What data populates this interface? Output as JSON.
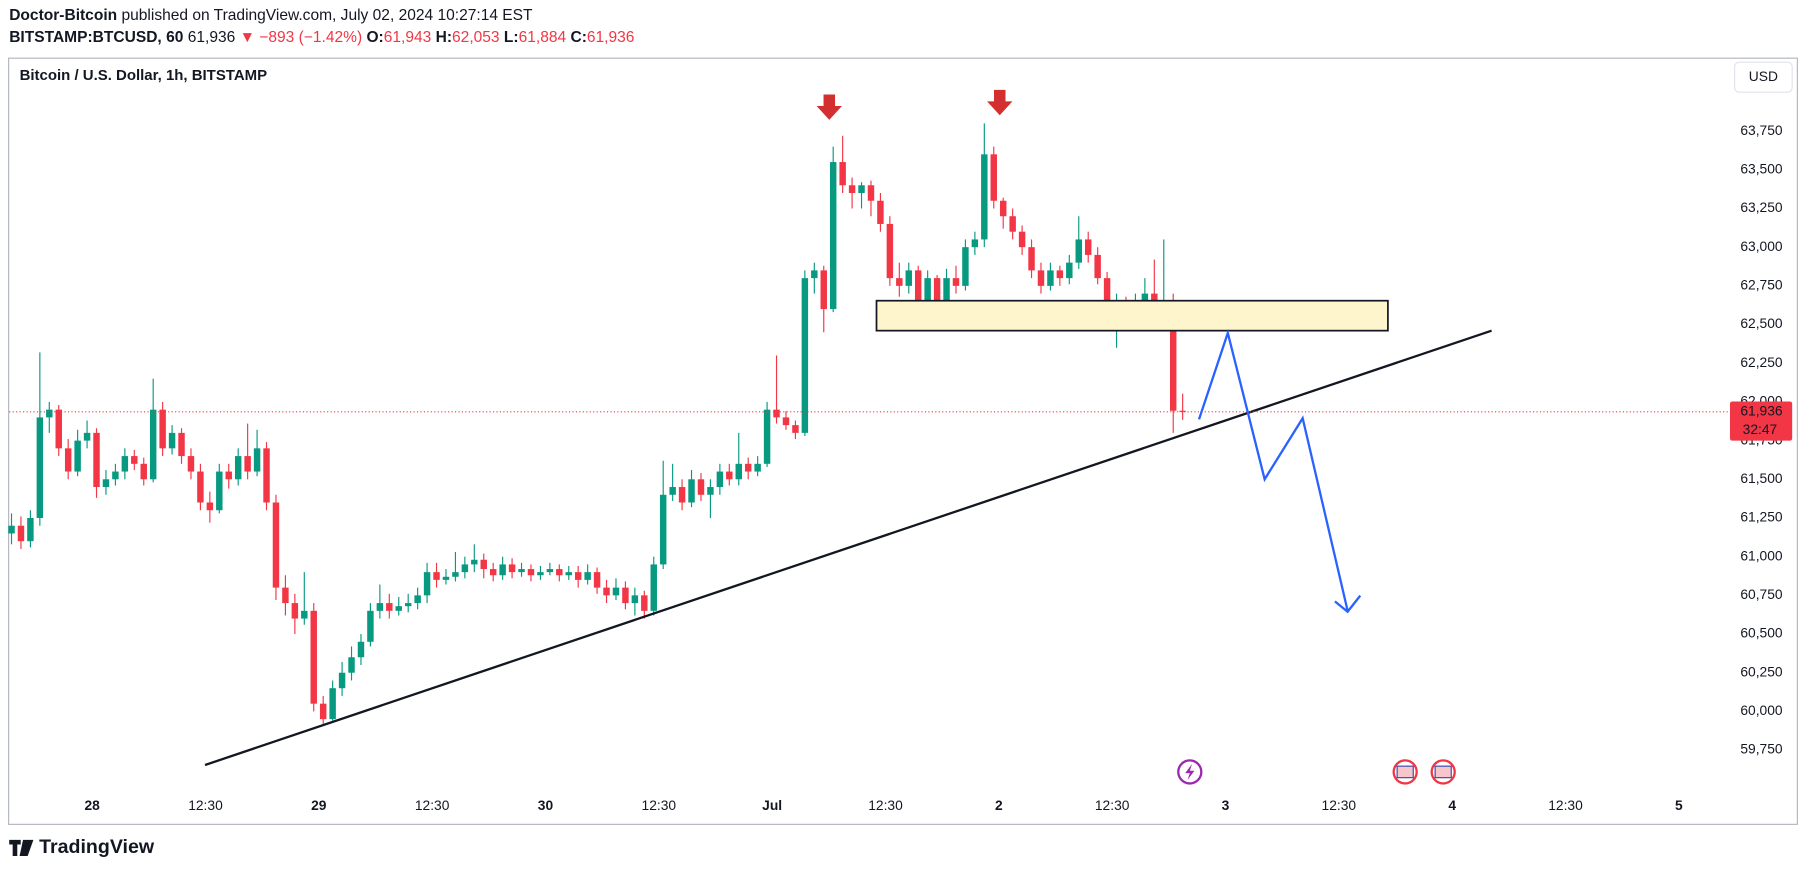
{
  "header": {
    "author": "Doctor-Bitcoin",
    "published": "published on TradingView.com, July 02, 2024 10:27:14 EST",
    "symbol": "BITSTAMP:BTCUSD, 60",
    "price": "61,936",
    "change": "▼ −893 (−1.42%)",
    "ohlc": [
      {
        "key": "O:",
        "value": "61,943"
      },
      {
        "key": "H:",
        "value": "62,053"
      },
      {
        "key": "L:",
        "value": "61,884"
      },
      {
        "key": "C:",
        "value": "61,936"
      }
    ]
  },
  "chart_data": {
    "type": "candlestick",
    "title": "Bitcoin / U.S. Dollar, 1h, BITSTAMP",
    "currency": "USD",
    "up_color": "#089981",
    "down_color": "#f23645",
    "grid": false,
    "ylim": [
      59475,
      64225
    ],
    "yticks": [
      {
        "value": 59750,
        "label": "59,750"
      },
      {
        "value": 60000,
        "label": "60,000"
      },
      {
        "value": 60250,
        "label": "60,250"
      },
      {
        "value": 60500,
        "label": "60,500"
      },
      {
        "value": 60750,
        "label": "60,750"
      },
      {
        "value": 61000,
        "label": "61,000"
      },
      {
        "value": 61250,
        "label": "61,250"
      },
      {
        "value": 61500,
        "label": "61,500"
      },
      {
        "value": 61750,
        "label": "61,750"
      },
      {
        "value": 62000,
        "label": "62,000"
      },
      {
        "value": 62250,
        "label": "62,250"
      },
      {
        "value": 62500,
        "label": "62,500"
      },
      {
        "value": 62750,
        "label": "62,750"
      },
      {
        "value": 63000,
        "label": "63,000"
      },
      {
        "value": 63250,
        "label": "63,250"
      },
      {
        "value": 63500,
        "label": "63,500"
      },
      {
        "value": 63750,
        "label": "63,750"
      }
    ],
    "xticks": [
      "28",
      "12:30",
      "29",
      "12:30",
      "30",
      "12:30",
      "Jul",
      "12:30",
      "2",
      "12:30",
      "3",
      "12:30",
      "4",
      "12:30",
      "5"
    ],
    "last_price": {
      "value": 61936,
      "label": "61,936"
    },
    "countdown": "32:47",
    "ohlc": [
      [
        61150,
        61280,
        61080,
        61200
      ],
      [
        61200,
        61260,
        61050,
        61100
      ],
      [
        61100,
        61300,
        61060,
        61250
      ],
      [
        61250,
        62320,
        61200,
        61900
      ],
      [
        61900,
        62000,
        61800,
        61950
      ],
      [
        61950,
        61980,
        61650,
        61700
      ],
      [
        61700,
        61760,
        61500,
        61550
      ],
      [
        61550,
        61820,
        61520,
        61750
      ],
      [
        61750,
        61880,
        61700,
        61800
      ],
      [
        61800,
        61830,
        61380,
        61450
      ],
      [
        61450,
        61560,
        61400,
        61500
      ],
      [
        61500,
        61600,
        61460,
        61550
      ],
      [
        61550,
        61700,
        61500,
        61650
      ],
      [
        61650,
        61690,
        61560,
        61600
      ],
      [
        61600,
        61640,
        61460,
        61500
      ],
      [
        61500,
        62150,
        61480,
        61950
      ],
      [
        61950,
        62000,
        61650,
        61700
      ],
      [
        61700,
        61850,
        61660,
        61800
      ],
      [
        61800,
        61830,
        61600,
        61650
      ],
      [
        61650,
        61700,
        61500,
        61550
      ],
      [
        61550,
        61600,
        61300,
        61350
      ],
      [
        61350,
        61420,
        61220,
        61300
      ],
      [
        61300,
        61600,
        61280,
        61550
      ],
      [
        61550,
        61600,
        61440,
        61500
      ],
      [
        61500,
        61700,
        61460,
        61650
      ],
      [
        61650,
        61860,
        61500,
        61550
      ],
      [
        61550,
        61820,
        61520,
        61700
      ],
      [
        61700,
        61740,
        61300,
        61350
      ],
      [
        61350,
        61400,
        60720,
        60800
      ],
      [
        60800,
        60880,
        60620,
        60700
      ],
      [
        60700,
        60760,
        60500,
        60600
      ],
      [
        60600,
        60900,
        60560,
        60650
      ],
      [
        60650,
        60700,
        60000,
        60050
      ],
      [
        60050,
        60100,
        59920,
        59950
      ],
      [
        59950,
        60200,
        59940,
        60150
      ],
      [
        60150,
        60320,
        60100,
        60250
      ],
      [
        60250,
        60420,
        60200,
        60350
      ],
      [
        60350,
        60500,
        60300,
        60450
      ],
      [
        60450,
        60700,
        60420,
        60650
      ],
      [
        60650,
        60820,
        60600,
        60700
      ],
      [
        60700,
        60760,
        60600,
        60650
      ],
      [
        60650,
        60740,
        60620,
        60680
      ],
      [
        60680,
        60760,
        60640,
        60700
      ],
      [
        60700,
        60800,
        60660,
        60750
      ],
      [
        60750,
        60960,
        60700,
        60900
      ],
      [
        60900,
        60960,
        60800,
        60850
      ],
      [
        60850,
        60920,
        60820,
        60870
      ],
      [
        60870,
        61030,
        60840,
        60900
      ],
      [
        60900,
        61000,
        60860,
        60950
      ],
      [
        60950,
        61080,
        60900,
        60980
      ],
      [
        60980,
        61020,
        60860,
        60920
      ],
      [
        60920,
        60960,
        60840,
        60880
      ],
      [
        60880,
        61000,
        60850,
        60950
      ],
      [
        60950,
        60990,
        60860,
        60900
      ],
      [
        60900,
        60960,
        60870,
        60920
      ],
      [
        60920,
        60950,
        60840,
        60880
      ],
      [
        60880,
        60940,
        60850,
        60900
      ],
      [
        60900,
        60960,
        60880,
        60920
      ],
      [
        60920,
        60950,
        60840,
        60880
      ],
      [
        60880,
        60940,
        60850,
        60900
      ],
      [
        60900,
        60940,
        60800,
        60850
      ],
      [
        60850,
        60950,
        60820,
        60900
      ],
      [
        60900,
        60930,
        60760,
        60800
      ],
      [
        60800,
        60850,
        60700,
        60750
      ],
      [
        60750,
        60860,
        60720,
        60800
      ],
      [
        60800,
        60840,
        60660,
        60700
      ],
      [
        60700,
        60800,
        60620,
        60750
      ],
      [
        60750,
        60780,
        60600,
        60650
      ],
      [
        60650,
        61000,
        60620,
        60950
      ],
      [
        60950,
        61620,
        60920,
        61400
      ],
      [
        61400,
        61600,
        61360,
        61450
      ],
      [
        61450,
        61500,
        61300,
        61350
      ],
      [
        61350,
        61560,
        61320,
        61500
      ],
      [
        61500,
        61540,
        61360,
        61400
      ],
      [
        61400,
        61500,
        61250,
        61450
      ],
      [
        61450,
        61600,
        61400,
        61550
      ],
      [
        61550,
        61600,
        61460,
        61500
      ],
      [
        61500,
        61800,
        61460,
        61600
      ],
      [
        61600,
        61640,
        61500,
        61550
      ],
      [
        61550,
        61650,
        61520,
        61600
      ],
      [
        61600,
        62000,
        61580,
        61950
      ],
      [
        61950,
        62300,
        61860,
        61900
      ],
      [
        61900,
        61940,
        61820,
        61850
      ],
      [
        61850,
        61880,
        61760,
        61800
      ],
      [
        61800,
        62850,
        61780,
        62800
      ],
      [
        62800,
        62900,
        62700,
        62850
      ],
      [
        62850,
        62880,
        62450,
        62600
      ],
      [
        62600,
        63650,
        62580,
        63550
      ],
      [
        63550,
        63720,
        63350,
        63400
      ],
      [
        63400,
        63450,
        63250,
        63350
      ],
      [
        63350,
        63420,
        63250,
        63400
      ],
      [
        63400,
        63430,
        63200,
        63300
      ],
      [
        63300,
        63350,
        63100,
        63150
      ],
      [
        63150,
        63200,
        62750,
        62800
      ],
      [
        62800,
        62900,
        62680,
        62750
      ],
      [
        62750,
        62900,
        62700,
        62850
      ],
      [
        62850,
        62880,
        62520,
        62600
      ],
      [
        62600,
        62850,
        62550,
        62800
      ],
      [
        62800,
        62820,
        62480,
        62550
      ],
      [
        62550,
        62860,
        62520,
        62800
      ],
      [
        62800,
        62880,
        62700,
        62750
      ],
      [
        62750,
        63050,
        62720,
        63000
      ],
      [
        63000,
        63100,
        62950,
        63050
      ],
      [
        63050,
        63800,
        63000,
        63600
      ],
      [
        63600,
        63650,
        63250,
        63300
      ],
      [
        63300,
        63320,
        63120,
        63200
      ],
      [
        63200,
        63250,
        63050,
        63100
      ],
      [
        63100,
        63140,
        62950,
        63000
      ],
      [
        63000,
        63050,
        62800,
        62850
      ],
      [
        62850,
        62900,
        62700,
        62750
      ],
      [
        62750,
        62900,
        62720,
        62850
      ],
      [
        62850,
        62880,
        62750,
        62800
      ],
      [
        62800,
        62950,
        62760,
        62900
      ],
      [
        62900,
        63200,
        62860,
        63050
      ],
      [
        63050,
        63100,
        62900,
        62950
      ],
      [
        62950,
        63000,
        62760,
        62800
      ],
      [
        62800,
        62840,
        62460,
        62500
      ],
      [
        62500,
        62700,
        62350,
        62650
      ],
      [
        62650,
        62680,
        62480,
        62550
      ],
      [
        62550,
        62700,
        62460,
        62600
      ],
      [
        62600,
        62800,
        62560,
        62700
      ],
      [
        62700,
        62920,
        62520,
        62550
      ],
      [
        62550,
        63050,
        62500,
        62650
      ],
      [
        62650,
        62700,
        61800,
        61943
      ],
      [
        61943,
        62053,
        61884,
        61936
      ]
    ]
  },
  "footer": {
    "brand": "TradingView"
  }
}
